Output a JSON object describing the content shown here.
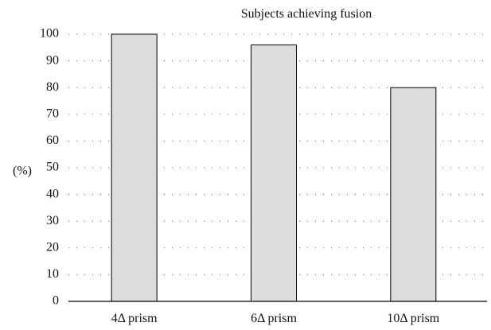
{
  "chart_data": {
    "type": "bar",
    "title": "Subjects achieving fusion",
    "ylabel": "(%)",
    "xlabel": "",
    "categories": [
      "4Δ prism",
      "6Δ prism",
      "10Δ prism"
    ],
    "values": [
      100,
      96,
      80
    ],
    "ylim": [
      0,
      100
    ],
    "yticks": [
      0,
      10,
      20,
      30,
      40,
      50,
      60,
      70,
      80,
      90,
      100
    ],
    "grid": "dotted horizontal",
    "legend": "none",
    "colors": {
      "bar_fill": "#dcdcdc",
      "bar_stroke": "#000000",
      "grid": "#555555"
    }
  }
}
